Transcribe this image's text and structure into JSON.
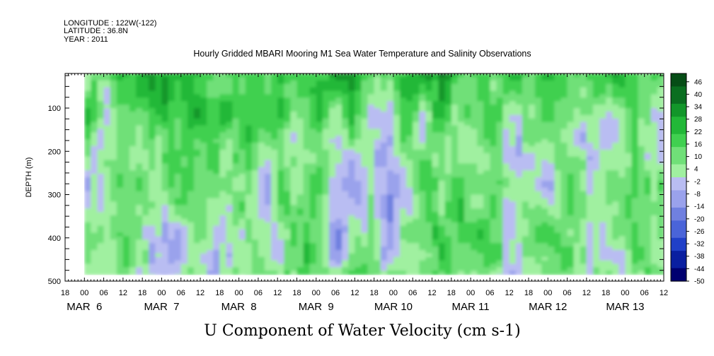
{
  "header": {
    "longitude": "LONGITUDE : 122W(-122)",
    "latitude": "LATITUDE : 36.8N",
    "year": "YEAR : 2011"
  },
  "chart_data": {
    "type": "heatmap",
    "title": "Hourly Gridded MBARI Mooring M1 Sea Water Temperature and Salinity Observations",
    "xlabel": "U Component of Water Velocity (cm s-1)",
    "ylabel": "DEPTH (m)",
    "x_axis": {
      "start": "2011-03-05T18:00",
      "end": "2011-03-13T12:00",
      "hour_ticks": [
        "18",
        "00",
        "06",
        "12",
        "18",
        "00",
        "06",
        "12",
        "18",
        "00",
        "06",
        "12",
        "18",
        "00",
        "06",
        "12",
        "18",
        "00",
        "06",
        "12",
        "18",
        "00",
        "06",
        "12",
        "18",
        "00",
        "06",
        "12",
        "18",
        "00",
        "06",
        "12"
      ],
      "date_labels": [
        "MAR  6",
        "MAR  7",
        "MAR  8",
        "MAR  9",
        "MAR 10",
        "MAR 11",
        "MAR 12",
        "MAR 13"
      ],
      "data_start": "2011-03-06T00:00",
      "data_end": "2011-03-13T12:00"
    },
    "y_axis": {
      "range": [
        500,
        20
      ],
      "inverted": true,
      "tick_labels": [
        "100",
        "200",
        "300",
        "400",
        "500"
      ],
      "data_range": [
        20,
        485
      ]
    },
    "colorbar": {
      "range": [
        -50,
        50
      ],
      "labels": [
        "46",
        "40",
        "34",
        "28",
        "22",
        "16",
        "10",
        "4",
        "-2",
        "-8",
        "-14",
        "-20",
        "-26",
        "-32",
        "-38",
        "-44",
        "-50"
      ],
      "negative_colors": [
        "#000070",
        "#0a1fa0",
        "#2040c8",
        "#4a64d8",
        "#7080e0",
        "#9aa2ec",
        "#b9bdf2"
      ],
      "positive_colors": [
        "#a0f0a0",
        "#70e078",
        "#40d050",
        "#22b838",
        "#12962a",
        "#0a6e20",
        "#064d16"
      ]
    }
  }
}
